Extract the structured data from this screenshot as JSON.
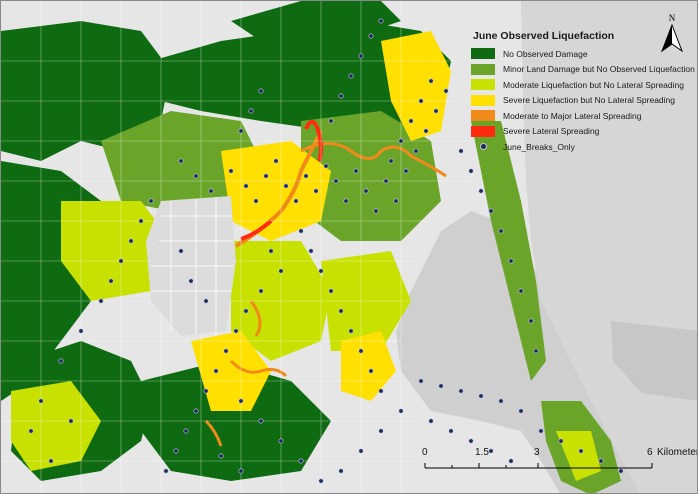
{
  "legend": {
    "title": "June Observed Liquefaction",
    "items": [
      {
        "label": "No Observed Damage",
        "color": "#0f6b12"
      },
      {
        "label": "Minor Land Damage but No Observed Liquefaction",
        "color": "#6aa52a"
      },
      {
        "label": "Moderate Liquefaction but No Lateral Spreading",
        "color": "#c8e100"
      },
      {
        "label": "Severe Liquefaction but No Lateral Spreading",
        "color": "#ffe000"
      },
      {
        "label": "Moderate to Major Lateral Spreading",
        "color": "#f08a1a"
      },
      {
        "label": "Severe Lateral Spreading",
        "color": "#ff2a10"
      }
    ],
    "points_label": "June_Breaks_Only",
    "points_color": "#1e2b5a"
  },
  "north_arrow": {
    "label": "N"
  },
  "scale_bar": {
    "ticks": [
      "0",
      "1.5",
      "3",
      "6"
    ],
    "unit": "Kilometers"
  },
  "colors": {
    "land": "#e9e9e9",
    "water": "#c9c9c9",
    "roads": "#ffffff"
  }
}
